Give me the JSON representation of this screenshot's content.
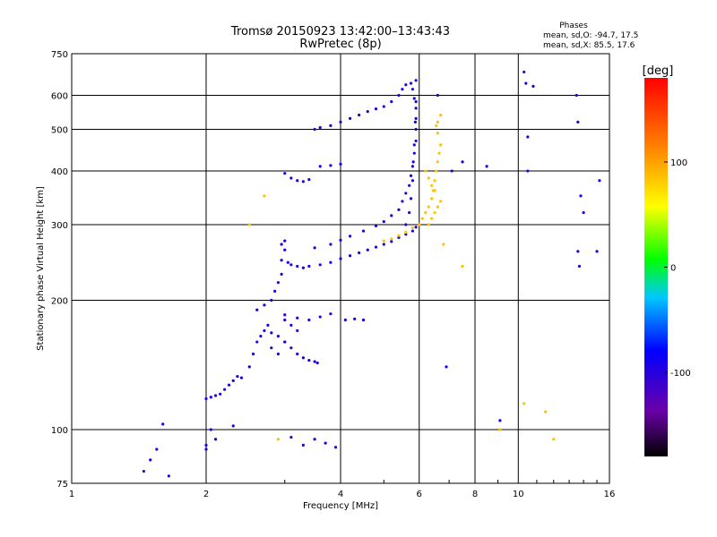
{
  "chart_data": {
    "type": "scatter",
    "title": "Tromsø 20150923 13:42:00–13:43:43",
    "subtitle": "RwPretec (8p)",
    "xlabel": "Frequency [MHz]",
    "ylabel": "Stationary phase Virtual Height [km]",
    "x_scale": "log",
    "y_scale": "log",
    "xlim": [
      1,
      16
    ],
    "ylim": [
      75,
      750
    ],
    "x_ticks": [
      1,
      2,
      4,
      6,
      8,
      10,
      16
    ],
    "y_ticks": [
      75,
      100,
      200,
      300,
      400,
      500,
      600,
      750
    ],
    "grid": true,
    "phases_box": {
      "title": "Phases",
      "line1": "mean, sd,O: -94.7, 17.5",
      "line2": "mean, sd,X:  85.5, 17.6"
    },
    "colorbar": {
      "label": "[deg]",
      "range": [
        -180,
        180
      ],
      "ticks": [
        100,
        0,
        -100
      ],
      "tick_labels": [
        "100",
        "0",
        "-100"
      ]
    },
    "series": [
      {
        "mode": "O",
        "phase_mean": -94.7,
        "phase_sd": 17.5,
        "points": [
          [
            1.45,
            80
          ],
          [
            1.5,
            85
          ],
          [
            1.55,
            90
          ],
          [
            1.6,
            103
          ],
          [
            1.65,
            78
          ],
          [
            2.0,
            90
          ],
          [
            2.0,
            92
          ],
          [
            2.05,
            100
          ],
          [
            2.1,
            95
          ],
          [
            2.3,
            102
          ],
          [
            2.0,
            118
          ],
          [
            2.05,
            119
          ],
          [
            2.1,
            120
          ],
          [
            2.15,
            121
          ],
          [
            2.2,
            124
          ],
          [
            2.25,
            127
          ],
          [
            2.3,
            130
          ],
          [
            2.35,
            133
          ],
          [
            2.4,
            132
          ],
          [
            2.5,
            140
          ],
          [
            2.55,
            150
          ],
          [
            2.6,
            160
          ],
          [
            2.65,
            165
          ],
          [
            2.7,
            170
          ],
          [
            2.75,
            175
          ],
          [
            2.8,
            168
          ],
          [
            2.9,
            165
          ],
          [
            3.0,
            160
          ],
          [
            2.6,
            190
          ],
          [
            2.7,
            195
          ],
          [
            2.8,
            200
          ],
          [
            2.85,
            210
          ],
          [
            2.9,
            220
          ],
          [
            2.95,
            230
          ],
          [
            3.0,
            180
          ],
          [
            3.1,
            175
          ],
          [
            3.2,
            170
          ],
          [
            3.0,
            160
          ],
          [
            3.1,
            155
          ],
          [
            3.2,
            150
          ],
          [
            3.3,
            147
          ],
          [
            3.4,
            145
          ],
          [
            3.5,
            144
          ],
          [
            3.55,
            143
          ],
          [
            2.9,
            150
          ],
          [
            2.8,
            155
          ],
          [
            2.95,
            248
          ],
          [
            3.0,
            262
          ],
          [
            2.95,
            270
          ],
          [
            3.0,
            275
          ],
          [
            3.05,
            245
          ],
          [
            3.1,
            242
          ],
          [
            3.2,
            240
          ],
          [
            3.3,
            238
          ],
          [
            3.4,
            240
          ],
          [
            3.6,
            242
          ],
          [
            3.8,
            245
          ],
          [
            4.0,
            250
          ],
          [
            4.2,
            254
          ],
          [
            4.4,
            258
          ],
          [
            4.6,
            262
          ],
          [
            4.8,
            266
          ],
          [
            5.0,
            270
          ],
          [
            5.2,
            274
          ],
          [
            5.4,
            280
          ],
          [
            5.6,
            285
          ],
          [
            5.8,
            290
          ],
          [
            5.9,
            296
          ],
          [
            3.5,
            265
          ],
          [
            3.8,
            270
          ],
          [
            4.0,
            276
          ],
          [
            4.2,
            282
          ],
          [
            4.5,
            290
          ],
          [
            4.8,
            298
          ],
          [
            5.0,
            305
          ],
          [
            5.2,
            315
          ],
          [
            5.4,
            325
          ],
          [
            5.5,
            340
          ],
          [
            5.6,
            355
          ],
          [
            5.7,
            370
          ],
          [
            5.75,
            390
          ],
          [
            5.8,
            410
          ],
          [
            5.85,
            440
          ],
          [
            5.9,
            470
          ],
          [
            5.9,
            500
          ],
          [
            5.9,
            530
          ],
          [
            5.9,
            560
          ],
          [
            5.85,
            590
          ],
          [
            5.8,
            620
          ],
          [
            5.75,
            640
          ],
          [
            5.9,
            650
          ],
          [
            5.6,
            300
          ],
          [
            5.7,
            320
          ],
          [
            5.75,
            345
          ],
          [
            5.8,
            380
          ],
          [
            5.82,
            420
          ],
          [
            5.85,
            460
          ],
          [
            5.88,
            520
          ],
          [
            5.9,
            580
          ],
          [
            3.5,
            500
          ],
          [
            3.6,
            505
          ],
          [
            3.8,
            510
          ],
          [
            4.0,
            520
          ],
          [
            4.2,
            530
          ],
          [
            4.4,
            540
          ],
          [
            4.6,
            550
          ],
          [
            4.8,
            558
          ],
          [
            5.0,
            565
          ],
          [
            5.2,
            580
          ],
          [
            5.4,
            600
          ],
          [
            5.5,
            620
          ],
          [
            5.6,
            635
          ],
          [
            3.6,
            410
          ],
          [
            3.8,
            412
          ],
          [
            4.0,
            415
          ],
          [
            3.0,
            395
          ],
          [
            3.1,
            385
          ],
          [
            3.2,
            380
          ],
          [
            3.3,
            378
          ],
          [
            3.4,
            382
          ],
          [
            3.0,
            185
          ],
          [
            3.2,
            182
          ],
          [
            3.4,
            180
          ],
          [
            3.6,
            183
          ],
          [
            3.8,
            186
          ],
          [
            4.1,
            180
          ],
          [
            4.3,
            181
          ],
          [
            4.5,
            180
          ],
          [
            3.3,
            92
          ],
          [
            3.5,
            95
          ],
          [
            3.7,
            93
          ],
          [
            3.9,
            91
          ],
          [
            3.1,
            96
          ],
          [
            6.6,
            600
          ],
          [
            7.5,
            420
          ],
          [
            8.5,
            410
          ],
          [
            9.1,
            105
          ],
          [
            10.3,
            680
          ],
          [
            10.4,
            640
          ],
          [
            10.5,
            480
          ],
          [
            10.5,
            400
          ],
          [
            13.5,
            600
          ],
          [
            13.6,
            520
          ],
          [
            13.8,
            350
          ],
          [
            14.0,
            320
          ],
          [
            13.6,
            260
          ],
          [
            13.7,
            240
          ],
          [
            15.2,
            380
          ],
          [
            15.0,
            260
          ],
          [
            10.8,
            630
          ],
          [
            6.9,
            140
          ],
          [
            7.1,
            400
          ]
        ]
      },
      {
        "mode": "X",
        "phase_mean": 85.5,
        "phase_sd": 17.6,
        "points": [
          [
            5.0,
            275
          ],
          [
            5.2,
            278
          ],
          [
            5.4,
            283
          ],
          [
            5.6,
            288
          ],
          [
            5.8,
            295
          ],
          [
            6.0,
            300
          ],
          [
            6.1,
            310
          ],
          [
            6.2,
            320
          ],
          [
            6.3,
            330
          ],
          [
            6.4,
            345
          ],
          [
            6.45,
            360
          ],
          [
            6.5,
            380
          ],
          [
            6.55,
            400
          ],
          [
            6.6,
            420
          ],
          [
            6.65,
            440
          ],
          [
            6.7,
            460
          ],
          [
            6.6,
            490
          ],
          [
            6.55,
            510
          ],
          [
            6.3,
            300
          ],
          [
            6.4,
            310
          ],
          [
            6.5,
            320
          ],
          [
            6.6,
            330
          ],
          [
            6.7,
            340
          ],
          [
            6.5,
            360
          ],
          [
            6.4,
            370
          ],
          [
            6.3,
            385
          ],
          [
            6.2,
            400
          ],
          [
            6.6,
            520
          ],
          [
            6.7,
            540
          ],
          [
            2.9,
            95
          ],
          [
            9.1,
            100
          ],
          [
            10.3,
            115
          ],
          [
            11.5,
            110
          ],
          [
            12.0,
            95
          ],
          [
            7.5,
            240
          ],
          [
            6.8,
            270
          ],
          [
            2.5,
            300
          ],
          [
            2.7,
            350
          ]
        ]
      }
    ]
  }
}
